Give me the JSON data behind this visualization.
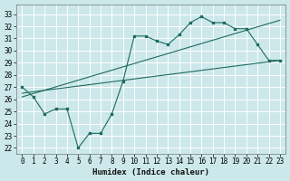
{
  "title": "",
  "xlabel": "Humidex (Indice chaleur)",
  "bg_color": "#cce8ea",
  "grid_color": "#ffffff",
  "line_color": "#1e6b5e",
  "xlim": [
    -0.5,
    23.5
  ],
  "ylim": [
    21.5,
    33.8
  ],
  "yticks": [
    22,
    23,
    24,
    25,
    26,
    27,
    28,
    29,
    30,
    31,
    32,
    33
  ],
  "xticks": [
    0,
    1,
    2,
    3,
    4,
    5,
    6,
    7,
    8,
    9,
    10,
    11,
    12,
    13,
    14,
    15,
    16,
    17,
    18,
    19,
    20,
    21,
    22,
    23
  ],
  "xtick_labels": [
    "0",
    "1",
    "2",
    "3",
    "4",
    "5",
    "6",
    "7",
    "8",
    "9",
    "10",
    "11",
    "12",
    "13",
    "14",
    "15",
    "16",
    "17",
    "18",
    "19",
    "20",
    "21",
    "22",
    "23"
  ],
  "line1_x": [
    0,
    1,
    2,
    3,
    4,
    5,
    6,
    7,
    8,
    9,
    10,
    11,
    12,
    13,
    14,
    15,
    16,
    17,
    18,
    19,
    20,
    21,
    22,
    23
  ],
  "line1_y": [
    27.0,
    26.2,
    24.8,
    25.2,
    25.2,
    22.0,
    23.2,
    23.2,
    24.8,
    27.5,
    31.2,
    31.2,
    30.8,
    30.5,
    31.3,
    32.3,
    32.8,
    32.3,
    32.3,
    31.8,
    31.8,
    30.5,
    29.2,
    29.2
  ],
  "line2_x": [
    0,
    23
  ],
  "line2_y": [
    26.5,
    29.2
  ],
  "line3_x": [
    0,
    23
  ],
  "line3_y": [
    26.2,
    32.5
  ],
  "xlabel_fontsize": 6.5,
  "tick_fontsize": 5.5,
  "linewidth": 0.8,
  "markersize": 2.0
}
